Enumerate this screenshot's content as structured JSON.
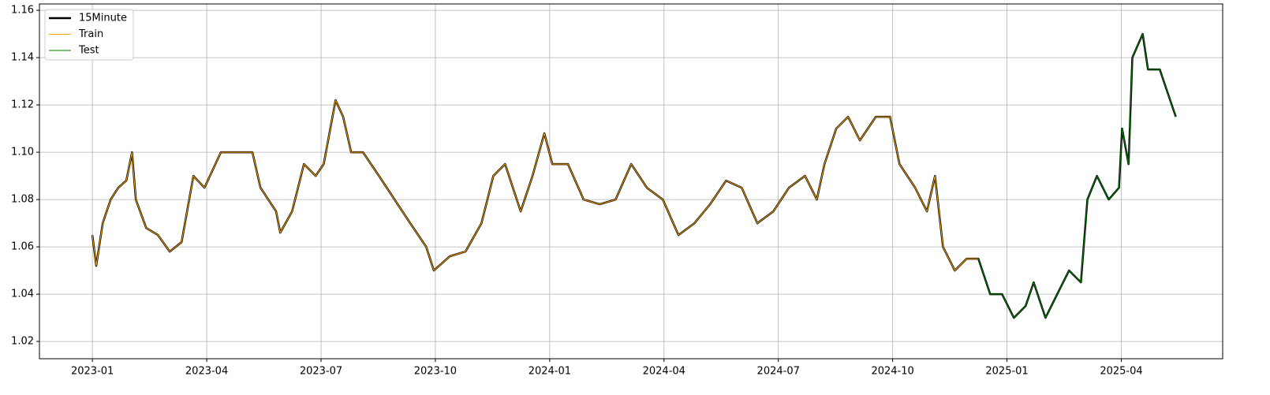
{
  "chart_data": {
    "type": "line",
    "xlim": [
      -1.39,
      29.66
    ],
    "ylim": [
      1.0127,
      1.1627
    ],
    "xticks": [
      {
        "value": 0,
        "label": "2023-01"
      },
      {
        "value": 3,
        "label": "2023-04"
      },
      {
        "value": 6,
        "label": "2023-07"
      },
      {
        "value": 9,
        "label": "2023-10"
      },
      {
        "value": 12,
        "label": "2024-01"
      },
      {
        "value": 15,
        "label": "2024-04"
      },
      {
        "value": 18,
        "label": "2024-07"
      },
      {
        "value": 21,
        "label": "2024-10"
      },
      {
        "value": 24,
        "label": "2025-01"
      },
      {
        "value": 27,
        "label": "2025-04"
      }
    ],
    "yticks": [
      1.02,
      1.04,
      1.06,
      1.08,
      {
        "value": 1.1,
        "label": "1.10"
      },
      1.12,
      1.14,
      1.16
    ],
    "grid": true,
    "legend": "upper left",
    "series": [
      {
        "name": "15Minute",
        "color": "#000000",
        "width": 2.5,
        "x": [
          0,
          0.1,
          0.27,
          0.48,
          0.68,
          0.89,
          1.04,
          1.14,
          1.41,
          1.72,
          2.03,
          2.34,
          2.65,
          2.94,
          3.37,
          3.79,
          4.2,
          4.41,
          4.82,
          4.93,
          5.24,
          5.55,
          5.86,
          6.07,
          6.38,
          6.58,
          6.79,
          7.1,
          7.52,
          7.93,
          8.34,
          8.76,
          8.96,
          9.38,
          9.79,
          10.21,
          10.52,
          10.83,
          11.24,
          11.55,
          11.86,
          12.07,
          12.48,
          12.89,
          13.31,
          13.73,
          14.14,
          14.55,
          14.97,
          15.38,
          15.8,
          16.21,
          16.63,
          17.04,
          17.45,
          17.87,
          18.28,
          18.7,
          19.01,
          19.21,
          19.52,
          19.83,
          20.14,
          20.56,
          20.93,
          21.18,
          21.59,
          21.9,
          22.11,
          22.32,
          22.63,
          22.94,
          23.25,
          23.56,
          23.87,
          24.18,
          24.49,
          24.7,
          25.01,
          25.32,
          25.63,
          25.94,
          26.11,
          26.36,
          26.67,
          26.94,
          27.02,
          27.19,
          27.29,
          27.56,
          27.7,
          28.01,
          28.22,
          28.43
        ],
        "values": [
          1.065,
          1.052,
          1.07,
          1.08,
          1.085,
          1.088,
          1.1,
          1.08,
          1.068,
          1.065,
          1.058,
          1.062,
          1.09,
          1.085,
          1.1,
          1.1,
          1.1,
          1.085,
          1.075,
          1.066,
          1.075,
          1.095,
          1.09,
          1.095,
          1.122,
          1.115,
          1.1,
          1.1,
          1.09,
          1.08,
          1.07,
          1.06,
          1.05,
          1.056,
          1.058,
          1.07,
          1.09,
          1.095,
          1.075,
          1.09,
          1.108,
          1.095,
          1.095,
          1.08,
          1.078,
          1.08,
          1.095,
          1.085,
          1.08,
          1.065,
          1.07,
          1.078,
          1.088,
          1.085,
          1.07,
          1.075,
          1.085,
          1.09,
          1.08,
          1.095,
          1.11,
          1.115,
          1.105,
          1.115,
          1.115,
          1.095,
          1.085,
          1.075,
          1.09,
          1.06,
          1.05,
          1.055,
          1.055,
          1.04,
          1.04,
          1.03,
          1.035,
          1.045,
          1.03,
          1.04,
          1.05,
          1.045,
          1.08,
          1.09,
          1.08,
          1.085,
          1.11,
          1.095,
          1.14,
          1.15,
          1.135,
          1.135,
          1.125,
          1.115
        ]
      },
      {
        "name": "Train",
        "color": "#ffa500",
        "width": 1,
        "x": [
          0,
          0.1,
          0.27,
          0.48,
          0.68,
          0.89,
          1.04,
          1.14,
          1.41,
          1.72,
          2.03,
          2.34,
          2.65,
          2.94,
          3.37,
          3.79,
          4.2,
          4.41,
          4.82,
          4.93,
          5.24,
          5.55,
          5.86,
          6.07,
          6.38,
          6.58,
          6.79,
          7.1,
          7.52,
          7.93,
          8.34,
          8.76,
          8.96,
          9.38,
          9.79,
          10.21,
          10.52,
          10.83,
          11.24,
          11.55,
          11.86,
          12.07,
          12.48,
          12.89,
          13.31,
          13.73,
          14.14,
          14.55,
          14.97,
          15.38,
          15.8,
          16.21,
          16.63,
          17.04,
          17.45,
          17.87,
          18.28,
          18.7,
          19.01,
          19.21,
          19.52,
          19.83,
          20.14,
          20.56,
          20.93,
          21.18,
          21.59,
          21.9,
          22.11,
          22.32,
          22.63,
          22.94,
          23.25
        ],
        "values": [
          1.065,
          1.052,
          1.07,
          1.08,
          1.085,
          1.088,
          1.1,
          1.08,
          1.068,
          1.065,
          1.058,
          1.062,
          1.09,
          1.085,
          1.1,
          1.1,
          1.1,
          1.085,
          1.075,
          1.066,
          1.075,
          1.095,
          1.09,
          1.095,
          1.122,
          1.115,
          1.1,
          1.1,
          1.09,
          1.08,
          1.07,
          1.06,
          1.05,
          1.056,
          1.058,
          1.07,
          1.09,
          1.095,
          1.075,
          1.09,
          1.108,
          1.095,
          1.095,
          1.08,
          1.078,
          1.08,
          1.095,
          1.085,
          1.08,
          1.065,
          1.07,
          1.078,
          1.088,
          1.085,
          1.07,
          1.075,
          1.085,
          1.09,
          1.08,
          1.095,
          1.11,
          1.115,
          1.105,
          1.115,
          1.115,
          1.095,
          1.085,
          1.075,
          1.09,
          1.06,
          1.05,
          1.055,
          1.055
        ]
      },
      {
        "name": "Test",
        "color": "#008000",
        "width": 1,
        "x": [
          23.25,
          23.56,
          23.87,
          24.18,
          24.49,
          24.7,
          25.01,
          25.32,
          25.63,
          25.94,
          26.11,
          26.36,
          26.67,
          26.94,
          27.02,
          27.19,
          27.29,
          27.56,
          27.7,
          28.01,
          28.22,
          28.43
        ],
        "values": [
          1.055,
          1.04,
          1.04,
          1.03,
          1.035,
          1.045,
          1.03,
          1.04,
          1.05,
          1.045,
          1.08,
          1.09,
          1.08,
          1.085,
          1.11,
          1.095,
          1.14,
          1.15,
          1.135,
          1.135,
          1.125,
          1.115
        ]
      }
    ]
  }
}
